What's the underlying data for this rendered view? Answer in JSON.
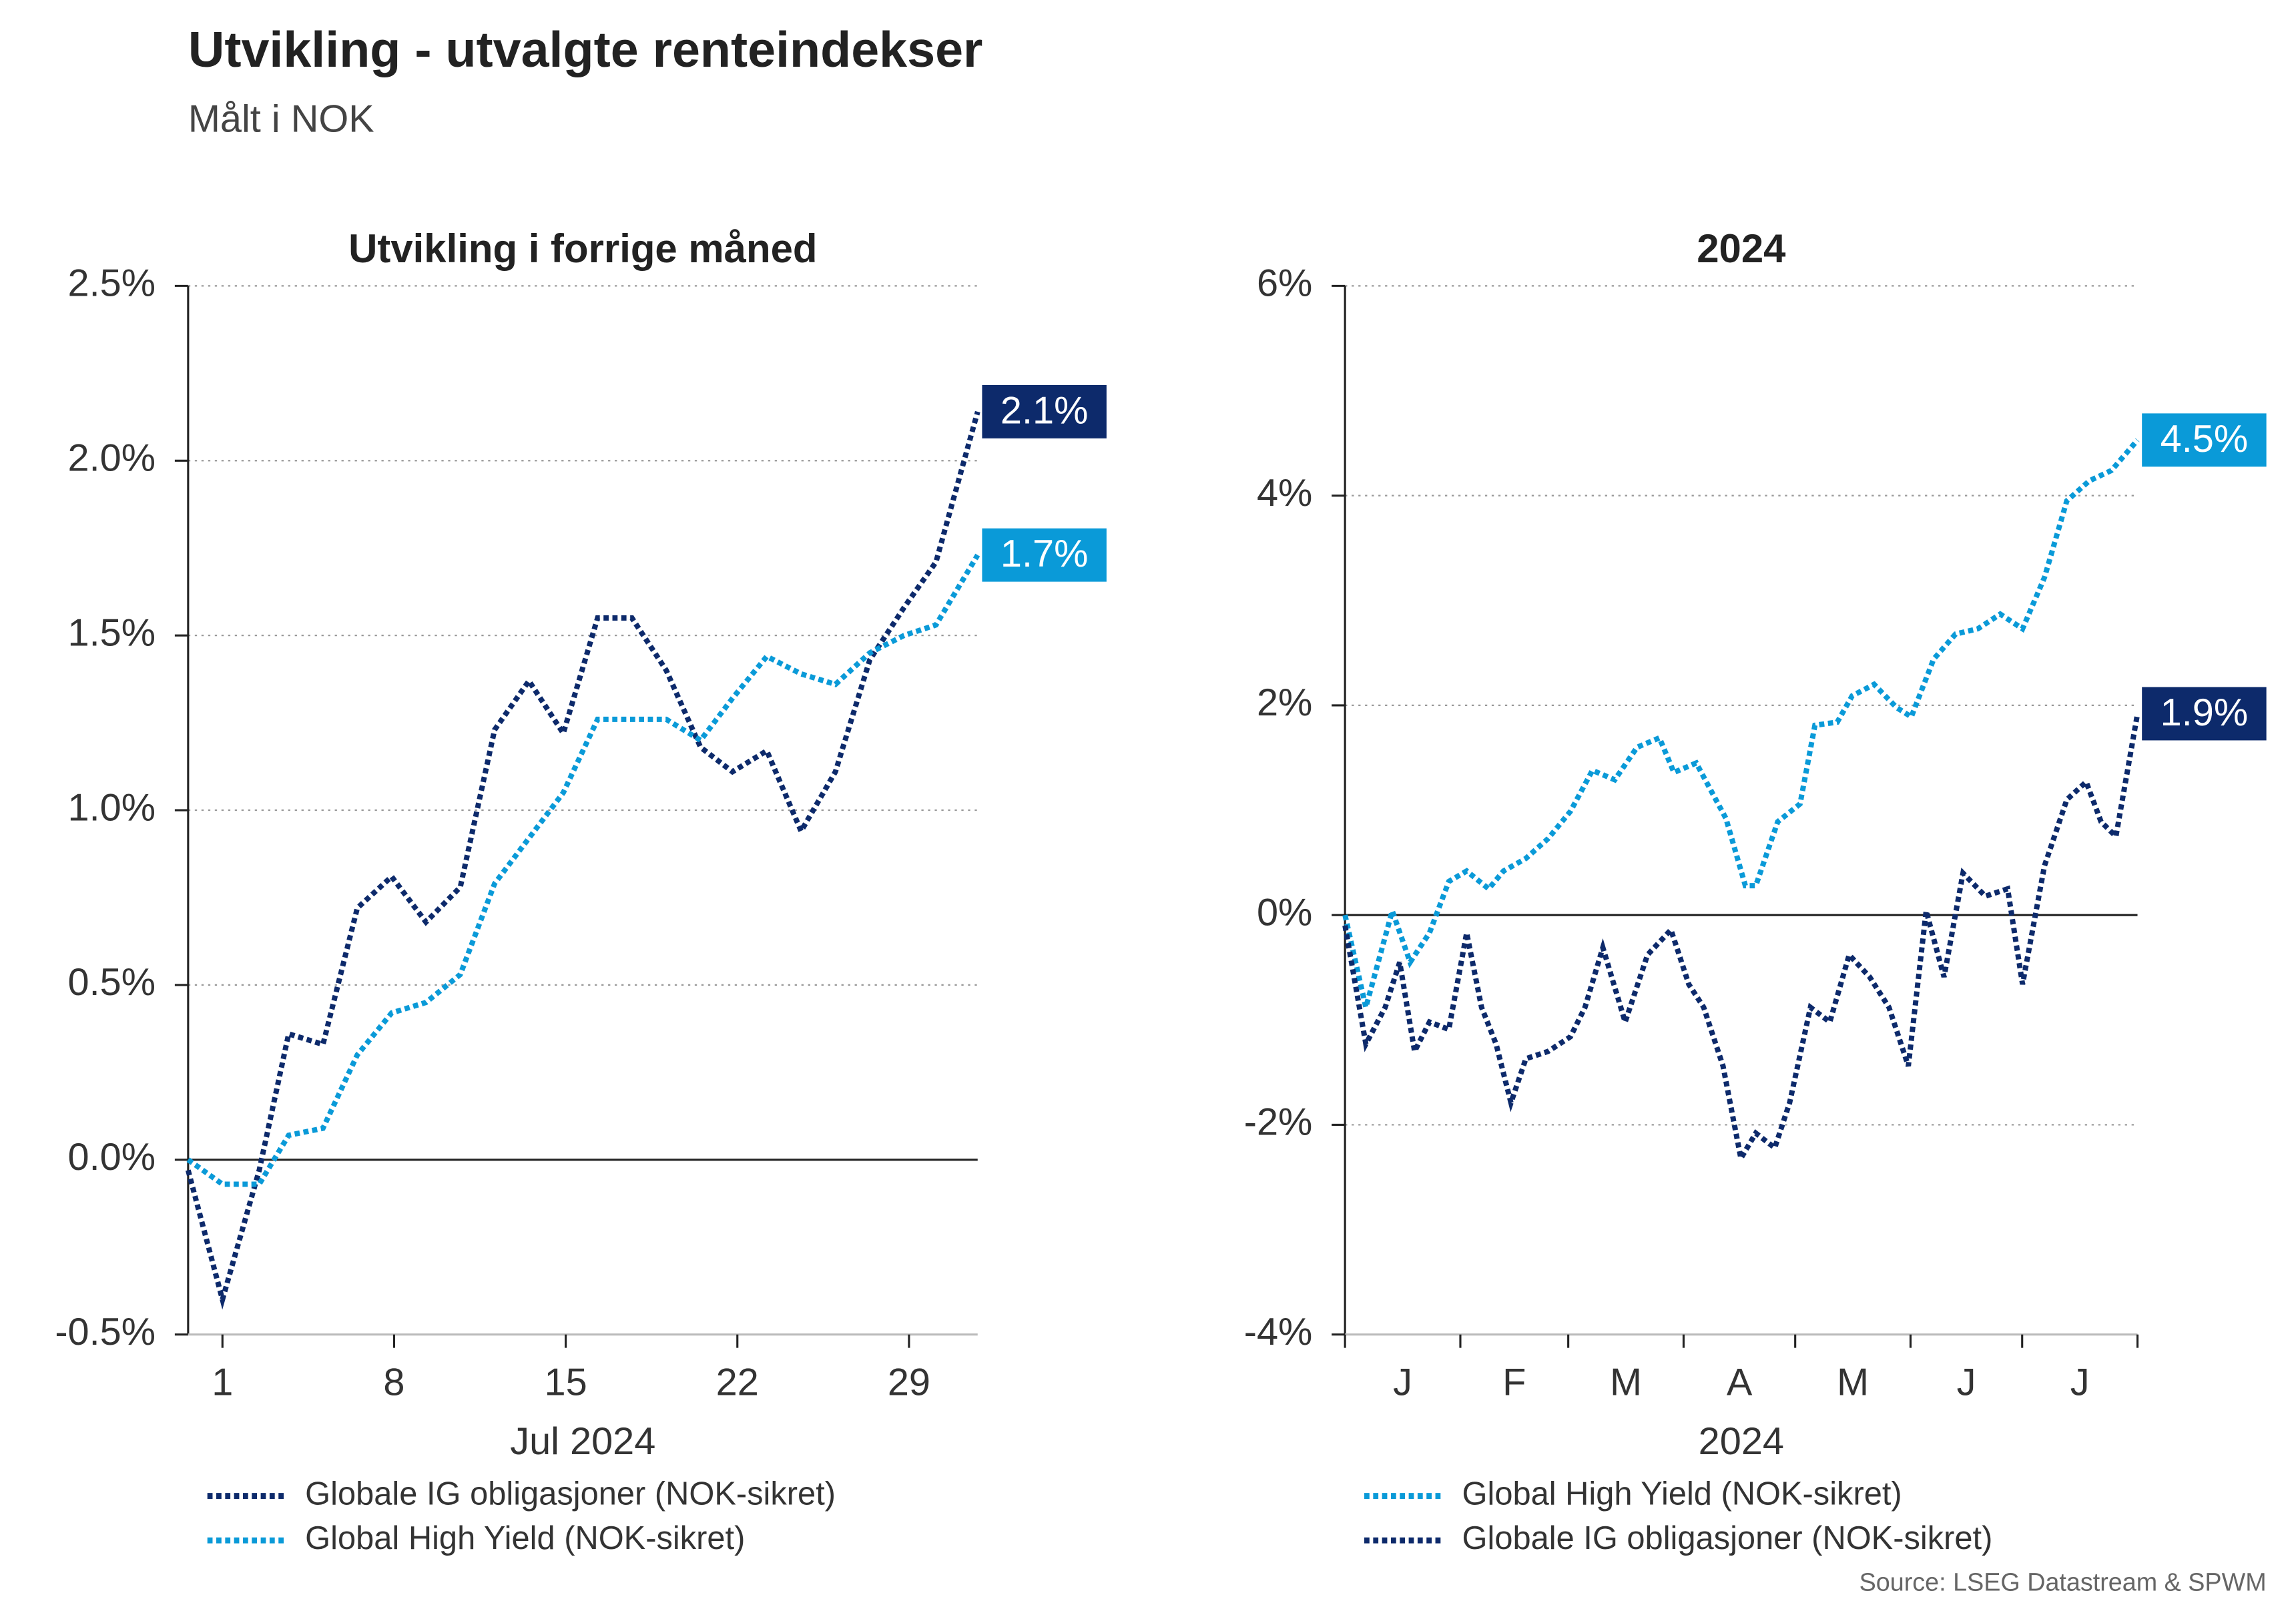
{
  "title": "Utvikling - utvalgte renteindekser",
  "subtitle": "Målt i NOK",
  "source": "Source: LSEG Datastream & SPWM",
  "chart_data": [
    {
      "type": "line",
      "title": "Utvikling i forrige måned",
      "x_label": "Jul 2024",
      "xlim": [
        -0.4,
        31.8
      ],
      "xticks": [
        1,
        8,
        15,
        22,
        29
      ],
      "ylim": [
        -0.5,
        2.5
      ],
      "yticks": [
        {
          "value": -0.5,
          "label": "-0.5%"
        },
        {
          "value": 0,
          "label": "0.0%"
        },
        {
          "value": 0.5,
          "label": "0.5%"
        },
        {
          "value": 1,
          "label": "1.0%"
        },
        {
          "value": 1.5,
          "label": "1.5%"
        },
        {
          "value": 2,
          "label": "2.0%"
        },
        {
          "value": 2.5,
          "label": "2.5%"
        }
      ],
      "grid": true,
      "x": [
        -0.4,
        1,
        2.5,
        3.7,
        5.1,
        6.5,
        7.9,
        9.3,
        10.7,
        12.1,
        13.5,
        14.9,
        16.3,
        17.7,
        19.1,
        20.5,
        21.8,
        23.2,
        24.6,
        26,
        27.4,
        28.8,
        30.1,
        31.8
      ],
      "series": [
        {
          "name": "Globale IG obligasjoner (NOK-sikret)",
          "color": "#0d2a6b",
          "end_label": "2.1%",
          "values": [
            -0.03,
            -0.4,
            -0.03,
            0.36,
            0.33,
            0.72,
            0.81,
            0.68,
            0.78,
            1.23,
            1.37,
            1.22,
            1.55,
            1.55,
            1.4,
            1.18,
            1.11,
            1.17,
            0.94,
            1.11,
            1.43,
            1.58,
            1.71,
            2.14
          ]
        },
        {
          "name": "Global High Yield (NOK-sikret)",
          "color": "#0a9ad8",
          "end_label": "1.7%",
          "values": [
            0,
            -0.07,
            -0.07,
            0.07,
            0.09,
            0.3,
            0.42,
            0.45,
            0.53,
            0.79,
            0.92,
            1.05,
            1.26,
            1.26,
            1.26,
            1.2,
            1.32,
            1.44,
            1.39,
            1.36,
            1.45,
            1.5,
            1.53,
            1.73
          ]
        }
      ]
    },
    {
      "type": "line",
      "title": "2024",
      "x_label": "2024",
      "xlim": [
        0,
        213
      ],
      "xticks": [
        {
          "value": 15.5,
          "label": "J"
        },
        {
          "value": 45.5,
          "label": "F"
        },
        {
          "value": 75.5,
          "label": "M"
        },
        {
          "value": 106,
          "label": "A"
        },
        {
          "value": 136.5,
          "label": "M"
        },
        {
          "value": 167,
          "label": "J"
        },
        {
          "value": 197.5,
          "label": "J"
        }
      ],
      "xtick_marks": [
        0,
        31,
        60,
        91,
        121,
        152,
        182,
        213
      ],
      "ylim": [
        -4,
        6
      ],
      "yticks": [
        {
          "value": -4,
          "label": "-4%"
        },
        {
          "value": -2,
          "label": "-2%"
        },
        {
          "value": 0,
          "label": "0%"
        },
        {
          "value": 2,
          "label": "2%"
        },
        {
          "value": 4,
          "label": "4%"
        },
        {
          "value": 6,
          "label": "6%"
        }
      ],
      "grid": true,
      "series": [
        {
          "name": "Global High Yield (NOK-sikret)",
          "color": "#0a9ad8",
          "end_label": "4.5%",
          "x": [
            0,
            5.6,
            12.7,
            17.5,
            22.7,
            27.9,
            32.7,
            38.6,
            42.6,
            48.6,
            54.6,
            60.6,
            66.5,
            72.5,
            78.5,
            84.5,
            88.4,
            94.4,
            102.4,
            107.6,
            110.4,
            116.3,
            122.3,
            126.3,
            132.3,
            136.3,
            142.2,
            148.2,
            152.2,
            158.2,
            164.1,
            170.1,
            176.1,
            182.1,
            188,
            194,
            200,
            206,
            213
          ],
          "values": [
            0,
            -0.88,
            0.04,
            -0.45,
            -0.17,
            0.32,
            0.42,
            0.25,
            0.42,
            0.54,
            0.73,
            0.99,
            1.38,
            1.29,
            1.6,
            1.69,
            1.36,
            1.45,
            0.92,
            0.28,
            0.28,
            0.89,
            1.06,
            1.81,
            1.84,
            2.09,
            2.2,
            1.98,
            1.89,
            2.44,
            2.68,
            2.73,
            2.87,
            2.73,
            3.22,
            3.95,
            4.14,
            4.24,
            4.53
          ]
        },
        {
          "name": "Globale IG obligasjoner (NOK-sikret)",
          "color": "#0d2a6b",
          "end_label": "1.9%",
          "x": [
            0,
            5.6,
            10.8,
            14.7,
            18.7,
            22.7,
            27.9,
            32.7,
            36.7,
            40.6,
            44.6,
            48.6,
            54.6,
            60.6,
            64.5,
            69.3,
            75.3,
            81.3,
            87.6,
            92.4,
            96.4,
            101.6,
            106.4,
            110.4,
            115.5,
            119.5,
            125.1,
            130.3,
            135.5,
            141,
            146.2,
            151.4,
            156.2,
            161,
            166.1,
            172.1,
            178.1,
            182.1,
            188,
            194,
            199.2,
            203.2,
            207.2,
            213
          ],
          "values": [
            -0.1,
            -1.23,
            -0.88,
            -0.45,
            -1.3,
            -1.02,
            -1.09,
            -0.17,
            -0.88,
            -1.23,
            -1.79,
            -1.37,
            -1.3,
            -1.16,
            -0.88,
            -0.31,
            -1.02,
            -0.38,
            -0.14,
            -0.66,
            -0.88,
            -1.44,
            -2.32,
            -2.08,
            -2.22,
            -1.79,
            -0.88,
            -1.02,
            -0.38,
            -0.59,
            -0.88,
            -1.44,
            0.04,
            -0.59,
            0.4,
            0.18,
            0.25,
            -0.66,
            0.47,
            1.1,
            1.27,
            0.89,
            0.75,
            1.92
          ]
        }
      ]
    }
  ]
}
